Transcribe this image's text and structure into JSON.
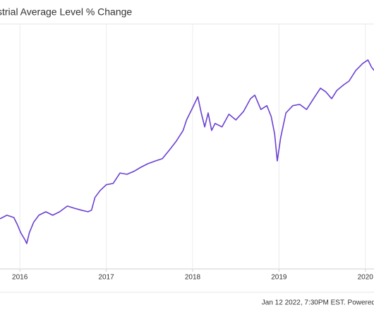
{
  "chart_data": {
    "type": "line",
    "title": "strial Average Level % Change",
    "footer": "Jan 12 2022, 7:30PM EST. Powered",
    "x": [
      2015.77,
      2015.85,
      2015.93,
      2015.97,
      2016.01,
      2016.06,
      2016.08,
      2016.11,
      2016.16,
      2016.22,
      2016.3,
      2016.38,
      2016.46,
      2016.55,
      2016.63,
      2016.71,
      2016.79,
      2016.83,
      2016.87,
      2016.93,
      2017.0,
      2017.08,
      2017.16,
      2017.24,
      2017.32,
      2017.4,
      2017.48,
      2017.57,
      2017.65,
      2017.73,
      2017.81,
      2017.89,
      2017.93,
      2017.99,
      2018.06,
      2018.1,
      2018.14,
      2018.18,
      2018.22,
      2018.26,
      2018.34,
      2018.42,
      2018.5,
      2018.59,
      2018.67,
      2018.72,
      2018.79,
      2018.86,
      2018.91,
      2018.95,
      2018.98,
      2019.02,
      2019.08,
      2019.16,
      2019.24,
      2019.32,
      2019.4,
      2019.48,
      2019.54,
      2019.61,
      2019.67,
      2019.75,
      2019.81,
      2019.89,
      2019.97,
      2020.03,
      2020.07,
      2020.1
    ],
    "series": [
      {
        "color": "#6b40d1",
        "values": [
          0,
          1.1,
          0.4,
          -1.8,
          -4.4,
          -6.7,
          -7.8,
          -4.4,
          -1.1,
          1.1,
          2.2,
          1.1,
          2.2,
          4,
          3.3,
          2.7,
          2.2,
          2.7,
          6.7,
          8.9,
          10.7,
          11.1,
          14.4,
          14,
          14.9,
          16.2,
          17.3,
          18.2,
          18.9,
          21.6,
          24.4,
          27.8,
          31.1,
          34.4,
          38.4,
          33.3,
          28.9,
          33.3,
          27.8,
          30,
          28.9,
          32.9,
          31.1,
          33.8,
          37.8,
          38.9,
          34.4,
          35.6,
          32.2,
          26.7,
          18.2,
          25.6,
          33.3,
          35.6,
          36,
          34.4,
          37.8,
          41.1,
          40,
          37.8,
          40.4,
          42.2,
          43.3,
          46.7,
          48.9,
          50,
          47.8,
          46.7
        ]
      }
    ],
    "xlim": [
      2015.77,
      2020.1
    ],
    "xticks": [
      2016,
      2017,
      2018,
      2019,
      2020
    ],
    "ylim": [
      -15.8,
      61.3
    ],
    "grid": true
  }
}
